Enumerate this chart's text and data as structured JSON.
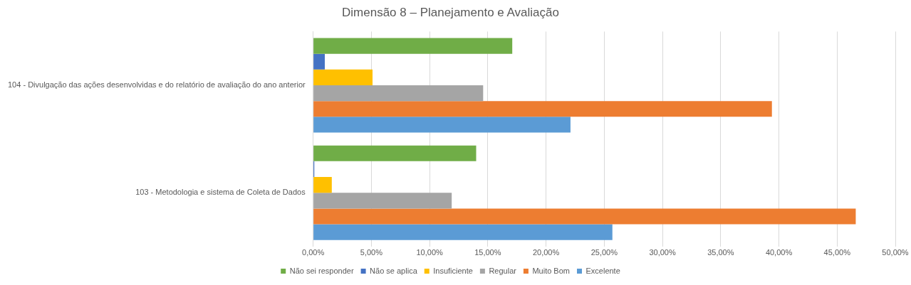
{
  "chart_data": {
    "type": "bar",
    "orientation": "horizontal",
    "title": "Dimensão 8 – Planejamento e Avaliação",
    "categories": [
      "104 - Divulgação das ações desenvolvidas e do relatório de avaliação do ano anterior",
      "103 - Metodologia e sistema de Coleta de Dados"
    ],
    "series": [
      {
        "name": "Não sei responder",
        "color": "#70ad47",
        "values": [
          17.1,
          14.0
        ]
      },
      {
        "name": "Não se aplica",
        "color": "#4472c4",
        "values": [
          1.0,
          0.1
        ]
      },
      {
        "name": "Insuficiente",
        "color": "#ffc000",
        "values": [
          5.1,
          1.6
        ]
      },
      {
        "name": "Regular",
        "color": "#a5a5a5",
        "values": [
          14.6,
          11.9
        ]
      },
      {
        "name": "Muito Bom",
        "color": "#ed7d31",
        "values": [
          39.4,
          46.6
        ]
      },
      {
        "name": "Excelente",
        "color": "#5b9bd5",
        "values": [
          22.1,
          25.7
        ]
      }
    ],
    "xlim": [
      0,
      50
    ],
    "xticks": [
      {
        "value": 0,
        "label": "0,00%"
      },
      {
        "value": 5,
        "label": "5,00%"
      },
      {
        "value": 10,
        "label": "10,00%"
      },
      {
        "value": 15,
        "label": "15,00%"
      },
      {
        "value": 20,
        "label": "20,00%"
      },
      {
        "value": 25,
        "label": "25,00%"
      },
      {
        "value": 30,
        "label": "30,00%"
      },
      {
        "value": 35,
        "label": "35,00%"
      },
      {
        "value": 40,
        "label": "40,00%"
      },
      {
        "value": 45,
        "label": "45,00%"
      },
      {
        "value": 50,
        "label": "50,00%"
      }
    ],
    "grid": "x",
    "legend": "bottom"
  }
}
